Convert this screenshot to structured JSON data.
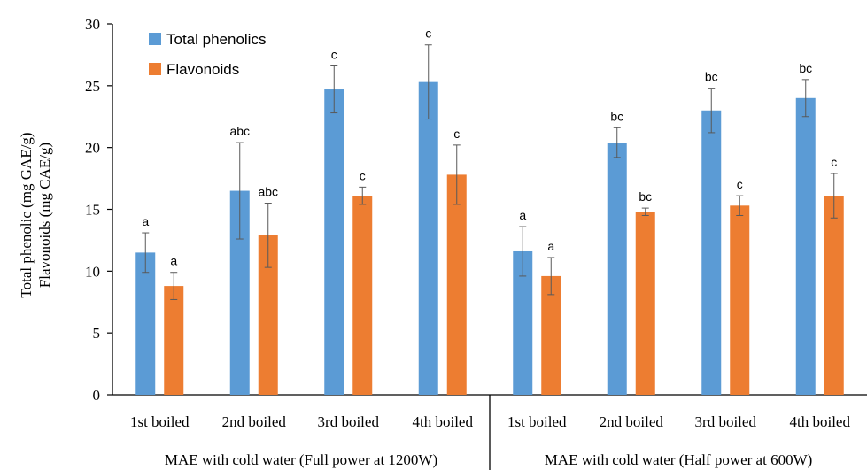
{
  "chart_data": {
    "type": "bar",
    "ylabel_lines": [
      "Total phenolic (mg GAE/g)",
      "Flavonoids (mg CAE/g)"
    ],
    "ylim": [
      0,
      30
    ],
    "yticks": [
      0,
      5,
      10,
      15,
      20,
      25,
      30
    ],
    "categories": [
      "1st boiled",
      "2nd boiled",
      "3rd boiled",
      "4th boiled",
      "1st boiled",
      "2nd boiled",
      "3rd boiled",
      "4th boiled"
    ],
    "groups": [
      {
        "label": "MAE with cold water (Full power at 1200W)",
        "categories": [
          0,
          1,
          2,
          3
        ]
      },
      {
        "label": "MAE with cold water (Half power at 600W)",
        "categories": [
          4,
          5,
          6,
          7
        ]
      }
    ],
    "legend_position": "top-left",
    "grid": false,
    "series": [
      {
        "name": "Total phenolics",
        "color": "#5B9BD5",
        "values": [
          11.5,
          16.5,
          24.7,
          25.3,
          11.6,
          20.4,
          23.0,
          24.0
        ],
        "errors": [
          1.6,
          3.9,
          1.9,
          3.0,
          2.0,
          1.2,
          1.8,
          1.5
        ],
        "labels": [
          "a",
          "abc",
          "c",
          "c",
          "a",
          "bc",
          "bc",
          "bc"
        ]
      },
      {
        "name": "Flavonoids",
        "color": "#ED7D31",
        "values": [
          8.8,
          12.9,
          16.1,
          17.8,
          9.6,
          14.8,
          15.3,
          16.1
        ],
        "errors": [
          1.1,
          2.6,
          0.7,
          2.4,
          1.5,
          0.3,
          0.8,
          1.8
        ],
        "labels": [
          "a",
          "abc",
          "c",
          "c",
          "a",
          "bc",
          "c",
          "c"
        ]
      }
    ]
  }
}
